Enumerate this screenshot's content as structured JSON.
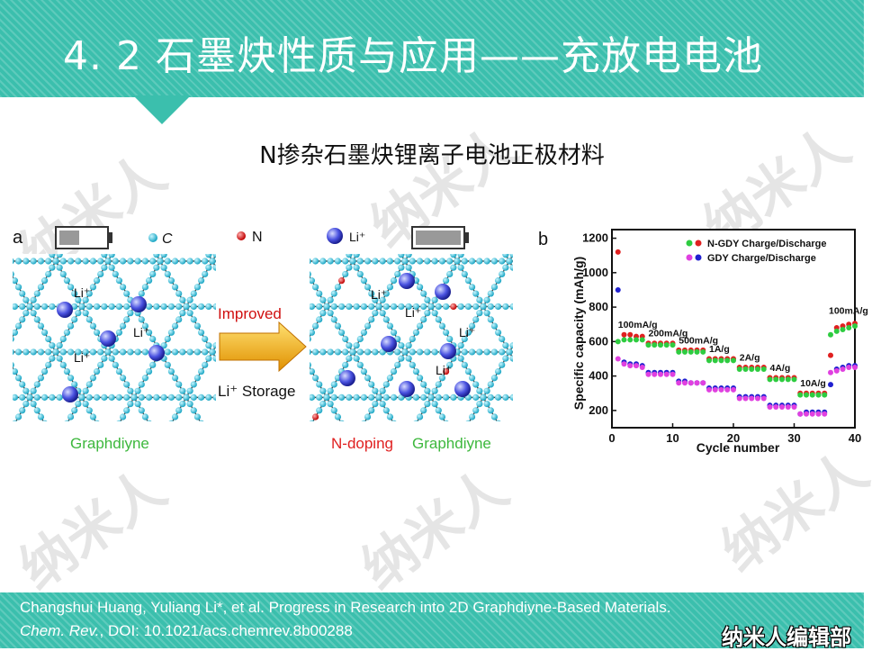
{
  "slide": {
    "title": "4. 2  石墨炔性质与应用——充放电电池",
    "subtitle": "N掺杂石墨炔锂离子电池正极材料",
    "watermark_text": "纳米人",
    "citation_line1": "Changshui Huang, Yuliang Li*, et al. Progress in Research into 2D Graphdiyne-Based Materials.",
    "citation_journal": "Chem. Rev.",
    "citation_doi": ", DOI: 10.1021/acs.chemrev.8b00288",
    "brand": "纳米人编辑部",
    "colors": {
      "teal": "#3bbfad",
      "green": "#2ecc40",
      "red": "#e02020"
    }
  },
  "figure_a": {
    "panel_label": "a",
    "legend_c": "C",
    "legend_n": "N",
    "legend_li": "Li⁺",
    "arrow_label": "Improved",
    "storage_label": "Li⁺ Storage",
    "li_label": "Li⁺",
    "left_caption": "Graphdiyne",
    "right_caption_red": "N-doping",
    "right_caption_green": "Graphdiyne"
  },
  "figure_b": {
    "panel_label": "b",
    "ylabel": "Specific capacity (mAh/g)",
    "xlabel": "Cycle number",
    "legend1": "N-GDY Charge/Discharge",
    "legend2": "GDY Charge/Discharge",
    "rate_labels": [
      "100mA/g",
      "200mA/g",
      "500mA/g",
      "1A/g",
      "2A/g",
      "4A/g",
      "10A/g",
      "100mA/g"
    ],
    "xticks": [
      "0",
      "10",
      "20",
      "30",
      "40"
    ],
    "yticks": [
      "200",
      "400",
      "600",
      "800",
      "1000",
      "1200"
    ]
  },
  "chart_data": {
    "type": "scatter",
    "title": "",
    "xlabel": "Cycle number",
    "ylabel": "Specific capacity (mAh/g)",
    "xlim": [
      0,
      40
    ],
    "ylim": [
      100,
      1250
    ],
    "series": [
      {
        "name": "N-GDY Charge/Discharge",
        "color": "#e02020",
        "x": [
          1,
          2,
          3,
          4,
          5,
          6,
          7,
          8,
          9,
          10,
          11,
          12,
          13,
          14,
          15,
          16,
          17,
          18,
          19,
          20,
          21,
          22,
          23,
          24,
          25,
          26,
          27,
          28,
          29,
          30,
          31,
          32,
          33,
          34,
          35,
          36,
          37,
          38,
          39,
          40
        ],
        "y": [
          1120,
          640,
          640,
          630,
          630,
          590,
          590,
          590,
          590,
          590,
          550,
          550,
          550,
          550,
          550,
          500,
          500,
          500,
          500,
          500,
          450,
          450,
          450,
          450,
          450,
          390,
          390,
          390,
          390,
          390,
          300,
          300,
          300,
          300,
          300,
          520,
          680,
          690,
          700,
          705
        ]
      },
      {
        "name": "N-GDY Charge/Discharge (charge)",
        "color": "#2ecc40",
        "x": [
          1,
          2,
          3,
          4,
          5,
          6,
          7,
          8,
          9,
          10,
          11,
          12,
          13,
          14,
          15,
          16,
          17,
          18,
          19,
          20,
          21,
          22,
          23,
          24,
          25,
          26,
          27,
          28,
          29,
          30,
          31,
          32,
          33,
          34,
          35,
          36,
          37,
          38,
          39,
          40
        ],
        "y": [
          600,
          610,
          610,
          610,
          610,
          580,
          580,
          580,
          580,
          580,
          540,
          540,
          540,
          540,
          540,
          490,
          490,
          490,
          490,
          490,
          440,
          440,
          440,
          440,
          440,
          380,
          380,
          380,
          380,
          380,
          290,
          290,
          290,
          290,
          290,
          640,
          660,
          670,
          680,
          690
        ]
      },
      {
        "name": "GDY Charge/Discharge",
        "color": "#2020d0",
        "x": [
          1,
          2,
          3,
          4,
          5,
          6,
          7,
          8,
          9,
          10,
          11,
          12,
          13,
          14,
          15,
          16,
          17,
          18,
          19,
          20,
          21,
          22,
          23,
          24,
          25,
          26,
          27,
          28,
          29,
          30,
          31,
          32,
          33,
          34,
          35,
          36,
          37,
          38,
          39,
          40
        ],
        "y": [
          900,
          480,
          470,
          470,
          460,
          420,
          420,
          420,
          420,
          420,
          370,
          370,
          360,
          360,
          360,
          330,
          330,
          330,
          330,
          330,
          280,
          280,
          280,
          280,
          280,
          230,
          230,
          230,
          230,
          230,
          180,
          190,
          190,
          190,
          190,
          350,
          440,
          450,
          460,
          460
        ]
      },
      {
        "name": "GDY Charge/Discharge (charge)",
        "color": "#e040e0",
        "x": [
          1,
          2,
          3,
          4,
          5,
          6,
          7,
          8,
          9,
          10,
          11,
          12,
          13,
          14,
          15,
          16,
          17,
          18,
          19,
          20,
          21,
          22,
          23,
          24,
          25,
          26,
          27,
          28,
          29,
          30,
          31,
          32,
          33,
          34,
          35,
          36,
          37,
          38,
          39,
          40
        ],
        "y": [
          500,
          470,
          460,
          460,
          450,
          410,
          410,
          410,
          410,
          410,
          360,
          360,
          360,
          360,
          360,
          320,
          320,
          320,
          320,
          320,
          270,
          270,
          270,
          270,
          270,
          220,
          220,
          220,
          220,
          220,
          180,
          180,
          180,
          180,
          180,
          420,
          430,
          440,
          450,
          450
        ]
      }
    ]
  }
}
